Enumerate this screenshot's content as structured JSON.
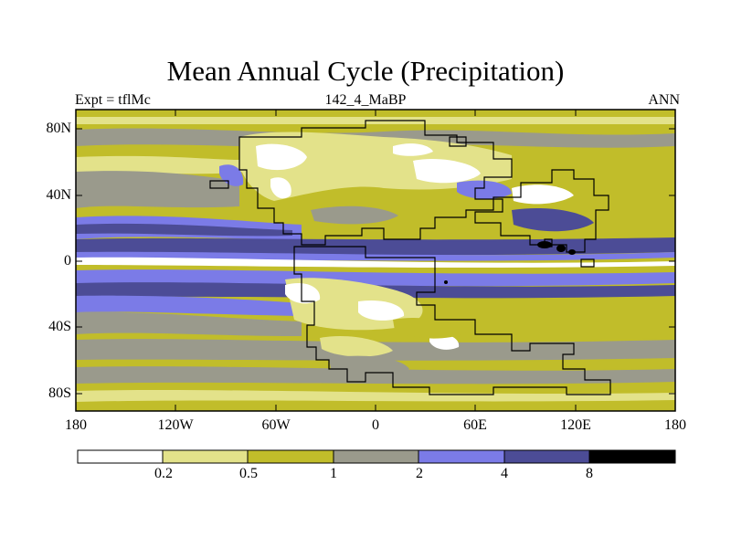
{
  "title": "Mean Annual Cycle (Precipitation)",
  "left_subtitle": "Expt = tflMc",
  "center_subtitle": "142_4_MaBP",
  "right_subtitle": "ANN",
  "map": {
    "projection": "cylindrical-equidistant",
    "lon_range": [
      -180,
      180
    ],
    "lat_range": [
      -90,
      90
    ],
    "lat_ticks": [
      {
        "value": 80,
        "label": "80N"
      },
      {
        "value": 40,
        "label": "40N"
      },
      {
        "value": 0,
        "label": "0"
      },
      {
        "value": -40,
        "label": "40S"
      },
      {
        "value": -80,
        "label": "80S"
      }
    ],
    "lon_ticks": [
      {
        "value": -180,
        "label": "180"
      },
      {
        "value": -120,
        "label": "120W"
      },
      {
        "value": -60,
        "label": "60W"
      },
      {
        "value": 0,
        "label": "0"
      },
      {
        "value": 60,
        "label": "60E"
      },
      {
        "value": 120,
        "label": "120E"
      },
      {
        "value": 180,
        "label": "180"
      }
    ]
  },
  "colorbar": {
    "levels": [
      "0.2",
      "0.5",
      "1",
      "2",
      "4",
      "8"
    ],
    "colors": [
      "#ffffff",
      "#e3e28a",
      "#c1bd2a",
      "#9a9a8c",
      "#7b7be7",
      "#4c4c96",
      "#000000"
    ]
  },
  "colors": {
    "c0": "#ffffff",
    "c1": "#e3e28a",
    "c2": "#c1bd2a",
    "c3": "#9a9a8c",
    "c4": "#7b7be7",
    "c5": "#4c4c96",
    "c6": "#000000"
  }
}
